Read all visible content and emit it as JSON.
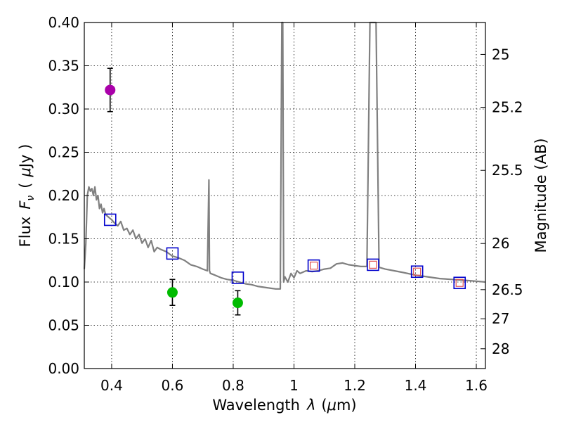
{
  "chart_data": {
    "type": "scatter",
    "xlabel_text": "Wavelength",
    "xlabel_symbol": "λ",
    "xlabel_unit_open": "(",
    "xlabel_unit_mu": "μ",
    "xlabel_unit_rest": "m)",
    "ylabel_text": "Flux",
    "ylabel_symbol": "F",
    "ylabel_sub": "ν",
    "ylabel_unit_open": "(",
    "ylabel_unit_mu": "μ",
    "ylabel_unit_rest": "Jy )",
    "y2label": "Magnitude (AB)",
    "xlim": [
      0.31,
      1.63
    ],
    "ylim": [
      0.0,
      0.4
    ],
    "xticks": [
      {
        "value": 0.4,
        "label": "0.4"
      },
      {
        "value": 0.6,
        "label": "0.6"
      },
      {
        "value": 0.8,
        "label": "0.8"
      },
      {
        "value": 1.0,
        "label": "1"
      },
      {
        "value": 1.2,
        "label": "1.2"
      },
      {
        "value": 1.4,
        "label": "1.4"
      },
      {
        "value": 1.6,
        "label": "1.6"
      }
    ],
    "yticks": [
      {
        "value": 0.0,
        "label": "0.00"
      },
      {
        "value": 0.05,
        "label": "0.05"
      },
      {
        "value": 0.1,
        "label": "0.10"
      },
      {
        "value": 0.15,
        "label": "0.15"
      },
      {
        "value": 0.2,
        "label": "0.20"
      },
      {
        "value": 0.25,
        "label": "0.25"
      },
      {
        "value": 0.3,
        "label": "0.30"
      },
      {
        "value": 0.35,
        "label": "0.35"
      },
      {
        "value": 0.4,
        "label": "0.40"
      }
    ],
    "y2ticks": [
      {
        "mag": 25,
        "label": "25"
      },
      {
        "mag": 25.2,
        "label": "25.2"
      },
      {
        "mag": 25.5,
        "label": "25.5"
      },
      {
        "mag": 26,
        "label": "26"
      },
      {
        "mag": 26.5,
        "label": "26.5"
      },
      {
        "mag": 27,
        "label": "27"
      },
      {
        "mag": 28,
        "label": "28"
      }
    ],
    "grid": true,
    "series": [
      {
        "name": "model-sed",
        "kind": "line",
        "color": "#808080",
        "x": [
          0.31,
          0.315,
          0.32,
          0.325,
          0.33,
          0.335,
          0.34,
          0.345,
          0.35,
          0.355,
          0.36,
          0.365,
          0.37,
          0.375,
          0.38,
          0.39,
          0.4,
          0.41,
          0.42,
          0.43,
          0.44,
          0.45,
          0.46,
          0.47,
          0.48,
          0.49,
          0.5,
          0.51,
          0.52,
          0.53,
          0.54,
          0.55,
          0.56,
          0.58,
          0.6,
          0.62,
          0.64,
          0.66,
          0.68,
          0.7,
          0.715,
          0.72,
          0.722,
          0.725,
          0.74,
          0.76,
          0.78,
          0.8,
          0.82,
          0.84,
          0.86,
          0.88,
          0.9,
          0.92,
          0.94,
          0.955,
          0.96,
          0.963,
          0.966,
          0.97,
          0.98,
          0.99,
          1.0,
          1.01,
          1.02,
          1.04,
          1.06,
          1.08,
          1.1,
          1.12,
          1.14,
          1.16,
          1.18,
          1.2,
          1.22,
          1.24,
          1.25,
          1.255,
          1.26,
          1.265,
          1.27,
          1.28,
          1.3,
          1.33,
          1.36,
          1.4,
          1.44,
          1.48,
          1.52,
          1.56,
          1.6,
          1.63
        ],
        "y": [
          0.115,
          0.145,
          0.2,
          0.21,
          0.205,
          0.208,
          0.2,
          0.21,
          0.195,
          0.2,
          0.185,
          0.19,
          0.18,
          0.185,
          0.178,
          0.175,
          0.172,
          0.168,
          0.165,
          0.17,
          0.16,
          0.162,
          0.155,
          0.16,
          0.15,
          0.155,
          0.145,
          0.15,
          0.14,
          0.148,
          0.135,
          0.14,
          0.138,
          0.135,
          0.13,
          0.128,
          0.125,
          0.12,
          0.118,
          0.115,
          0.113,
          0.218,
          0.113,
          0.11,
          0.108,
          0.105,
          0.103,
          0.102,
          0.1,
          0.098,
          0.097,
          0.095,
          0.094,
          0.093,
          0.092,
          0.092,
          0.4,
          0.4,
          0.1,
          0.106,
          0.1,
          0.11,
          0.105,
          0.113,
          0.11,
          0.113,
          0.112,
          0.113,
          0.115,
          0.116,
          0.121,
          0.122,
          0.12,
          0.119,
          0.118,
          0.118,
          0.4,
          0.4,
          0.4,
          0.4,
          0.4,
          0.117,
          0.115,
          0.113,
          0.111,
          0.108,
          0.106,
          0.104,
          0.103,
          0.102,
          0.101,
          0.1
        ]
      },
      {
        "name": "model-photometry",
        "kind": "open-square",
        "color": "#0000cc",
        "x": [
          0.395,
          0.6,
          0.815,
          1.065,
          1.26,
          1.405,
          1.545
        ],
        "y": [
          0.172,
          0.133,
          0.105,
          0.119,
          0.12,
          0.112,
          0.099
        ]
      },
      {
        "name": "nir-small-squares",
        "kind": "open-square-small",
        "color": "#e05050",
        "x": [
          1.065,
          1.26,
          1.405,
          1.545
        ],
        "y": [
          0.119,
          0.12,
          0.112,
          0.099
        ]
      },
      {
        "name": "magenta-detection",
        "kind": "filled-circle",
        "color": "#aa00aa",
        "x": [
          0.395
        ],
        "y": [
          0.322
        ],
        "yerr": [
          0.025
        ]
      },
      {
        "name": "green-detections",
        "kind": "filled-circle",
        "color": "#00bb00",
        "x": [
          0.6,
          0.815
        ],
        "y": [
          0.088,
          0.076
        ],
        "yerr": [
          0.015,
          0.014
        ]
      }
    ]
  }
}
